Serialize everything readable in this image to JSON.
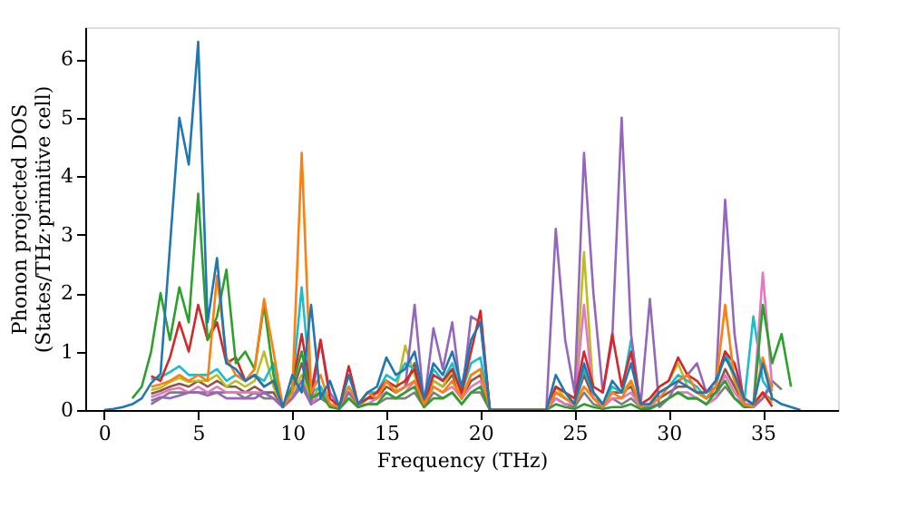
{
  "chart_data": {
    "type": "line",
    "xlabel": "Frequency (THz)",
    "ylabel": "Phonon projected DOS\n(States/THz·primitive cell)",
    "x": [
      0,
      0.5,
      1,
      1.5,
      2,
      2.5,
      3,
      3.5,
      4,
      4.5,
      5,
      5.5,
      6,
      6.5,
      7,
      7.5,
      8,
      8.5,
      9,
      9.5,
      10,
      10.5,
      11,
      11.5,
      12,
      12.5,
      13,
      13.5,
      14,
      14.5,
      15,
      15.5,
      16,
      16.5,
      17,
      17.5,
      18,
      18.5,
      19,
      19.5,
      20,
      20.5,
      21,
      21.5,
      22,
      22.5,
      23,
      23.5,
      24,
      24.5,
      25,
      25.5,
      26,
      26.5,
      27,
      27.5,
      28,
      28.5,
      29,
      29.5,
      30,
      30.5,
      31,
      31.5,
      32,
      32.5,
      33,
      33.5,
      34,
      34.5,
      35,
      35.5,
      36,
      36.5,
      37
    ],
    "xlim": [
      -1,
      39
    ],
    "xticks": [
      0,
      5,
      10,
      15,
      20,
      25,
      30,
      35
    ],
    "ylim": [
      0,
      6.55
    ],
    "yticks": [
      0,
      1,
      2,
      3,
      4,
      5,
      6
    ],
    "grid": false,
    "legend": false,
    "line_style": "solid",
    "marker": "none",
    "series": [
      {
        "color": "#8c564b",
        "values": [
          null,
          null,
          null,
          null,
          null,
          0.28,
          0.33,
          0.4,
          0.45,
          0.4,
          0.5,
          0.4,
          0.5,
          0.4,
          0.4,
          0.3,
          0.4,
          0.3,
          0.3,
          0.05,
          0.3,
          0.8,
          0.2,
          0.3,
          0.1,
          0.02,
          0.3,
          0.05,
          0.2,
          0.2,
          0.4,
          0.3,
          0.4,
          0.8,
          0.1,
          0.5,
          0.4,
          0.6,
          0.2,
          0.5,
          0.6,
          0,
          0,
          0,
          0,
          0,
          0,
          0,
          0.3,
          0.2,
          0.1,
          0.6,
          0.2,
          0.1,
          0.3,
          0.3,
          0.4,
          0.05,
          0.1,
          0.2,
          0.3,
          0.4,
          0.4,
          0.3,
          0.2,
          0.3,
          0.7,
          0.4,
          0.1,
          0.05,
          0.3,
          0.16,
          null,
          null,
          null
        ]
      },
      {
        "color": "#7f7f7f",
        "values": [
          null,
          null,
          null,
          null,
          null,
          0.1,
          0.2,
          0.3,
          0.3,
          0.3,
          0.3,
          0.3,
          0.3,
          0.3,
          0.3,
          0.2,
          0.3,
          0.2,
          0.2,
          0.05,
          0.2,
          0.4,
          0.1,
          0.2,
          0.1,
          0.02,
          0.2,
          0.05,
          0.1,
          0.1,
          0.2,
          0.2,
          0.2,
          0.3,
          0.05,
          0.3,
          0.2,
          0.3,
          0.1,
          0.3,
          0.3,
          0,
          0,
          0,
          0,
          0,
          0,
          0,
          0.2,
          0.1,
          0.05,
          0.3,
          0.1,
          0.05,
          0.2,
          0.1,
          0.2,
          0.05,
          0.05,
          0.1,
          0.2,
          0.3,
          0.2,
          0.2,
          0.1,
          0.2,
          0.4,
          0.2,
          0.1,
          0.05,
          0.2,
          0.5,
          0.35,
          null,
          null
        ]
      },
      {
        "color": "#bcbd22",
        "values": [
          null,
          null,
          null,
          null,
          null,
          0.34,
          0.38,
          0.48,
          0.55,
          0.48,
          0.5,
          0.5,
          0.6,
          0.4,
          0.5,
          0.4,
          0.5,
          1.0,
          0.4,
          0.05,
          0.3,
          0.6,
          0.2,
          0.4,
          0.1,
          0.02,
          0.3,
          0.05,
          0.2,
          0.3,
          0.5,
          0.3,
          1.1,
          0.6,
          0.1,
          0.5,
          0.4,
          0.7,
          0.2,
          0.6,
          0.7,
          0,
          0,
          0,
          0,
          0,
          0,
          0,
          0.4,
          0.2,
          0.1,
          2.7,
          0.3,
          0.1,
          0.4,
          0.3,
          0.5,
          0.05,
          0.1,
          0.4,
          0.5,
          0.8,
          0.4,
          0.3,
          0.2,
          0.4,
          1.0,
          0.5,
          0.1,
          0.05,
          0.3,
          0.12,
          null,
          null,
          null
        ]
      },
      {
        "color": "#17becf",
        "values": [
          null,
          null,
          null,
          null,
          null,
          0.52,
          0.56,
          0.65,
          0.75,
          0.6,
          0.6,
          0.6,
          0.7,
          0.5,
          0.6,
          0.5,
          0.6,
          0.5,
          0.8,
          0.05,
          0.4,
          2.1,
          0.3,
          0.4,
          0.1,
          0.02,
          0.4,
          0.1,
          0.3,
          0.3,
          0.6,
          0.5,
          0.8,
          0.7,
          0.1,
          0.7,
          0.5,
          0.8,
          0.3,
          0.8,
          0.9,
          0,
          0,
          0,
          0,
          0,
          0,
          0,
          0.4,
          0.3,
          0.1,
          0.7,
          0.3,
          0.1,
          0.4,
          0.3,
          1.2,
          0.05,
          0.1,
          0.3,
          0.4,
          0.6,
          0.5,
          0.4,
          0.2,
          0.4,
          1.0,
          0.6,
          0.1,
          1.6,
          0.5,
          0.26,
          null,
          null,
          null
        ]
      },
      {
        "color": "#e377c2",
        "values": [
          null,
          null,
          null,
          null,
          null,
          0.22,
          0.28,
          0.35,
          0.38,
          0.3,
          0.4,
          0.3,
          0.4,
          0.3,
          0.3,
          0.3,
          0.3,
          0.3,
          0.2,
          0.05,
          0.2,
          0.5,
          0.1,
          0.3,
          0.1,
          0.02,
          0.2,
          0.05,
          0.1,
          0.2,
          0.3,
          0.2,
          0.3,
          0.5,
          0.1,
          0.4,
          0.3,
          0.4,
          0.2,
          0.4,
          0.5,
          0,
          0,
          0,
          0,
          0,
          0,
          0,
          0.2,
          0.1,
          0.1,
          1.8,
          0.2,
          0.05,
          0.2,
          0.2,
          0.3,
          0.05,
          0.1,
          0.1,
          0.2,
          0.3,
          0.3,
          0.2,
          0.1,
          0.2,
          0.6,
          0.3,
          0.1,
          0.1,
          2.35,
          0.38,
          null,
          null,
          null
        ]
      },
      {
        "color": "#9467bd",
        "values": [
          null,
          null,
          null,
          null,
          null,
          0.16,
          0.22,
          0.2,
          0.25,
          0.3,
          0.3,
          0.25,
          0.3,
          0.2,
          0.2,
          0.2,
          0.2,
          0.3,
          0.2,
          0.05,
          0.2,
          0.5,
          0.1,
          1.2,
          0.3,
          0.05,
          0.3,
          0.1,
          0.2,
          0.3,
          0.5,
          0.3,
          0.4,
          1.8,
          0.1,
          1.4,
          0.7,
          1.5,
          0.2,
          1.6,
          1.5,
          0,
          0,
          0,
          0,
          0,
          0,
          0,
          3.1,
          1.2,
          0.3,
          4.4,
          2.0,
          0.3,
          1.2,
          5.0,
          1.3,
          0.05,
          1.9,
          0.05,
          0.2,
          0.5,
          0.6,
          0.8,
          0.3,
          0.4,
          3.6,
          1.3,
          0.1,
          0.05,
          0.2,
          0.44,
          null,
          null,
          null
        ]
      },
      {
        "color": "#d62728",
        "values": [
          null,
          null,
          null,
          null,
          null,
          0.58,
          0.5,
          0.9,
          1.5,
          1.0,
          1.8,
          1.2,
          1.5,
          0.8,
          0.9,
          0.5,
          0.6,
          0.4,
          0.5,
          0.05,
          0.4,
          1.3,
          0.3,
          1.2,
          0.2,
          0.05,
          0.75,
          0.1,
          0.2,
          0.3,
          0.5,
          0.4,
          0.5,
          0.7,
          0.1,
          0.6,
          0.5,
          0.7,
          0.3,
          1.0,
          1.7,
          0,
          0,
          0,
          0,
          0,
          0,
          0,
          0.4,
          0.3,
          0.2,
          1.0,
          0.4,
          0.3,
          1.3,
          0.4,
          1.0,
          0.1,
          0.2,
          0.4,
          0.5,
          0.9,
          0.6,
          0.5,
          0.3,
          0.5,
          1.0,
          0.8,
          0.2,
          0.1,
          0.3,
          0.06,
          null,
          null,
          null
        ]
      },
      {
        "color": "#2ca02c",
        "values": [
          null,
          null,
          null,
          0.2,
          0.4,
          1.0,
          2.0,
          1.2,
          2.1,
          1.5,
          3.7,
          1.2,
          1.6,
          2.4,
          0.8,
          1.0,
          0.7,
          1.8,
          0.6,
          0.05,
          0.4,
          1.0,
          0.2,
          0.3,
          0.05,
          0.02,
          0.2,
          0.05,
          0.1,
          0.1,
          0.3,
          0.2,
          0.3,
          0.4,
          0.05,
          0.2,
          0.2,
          0.3,
          0.1,
          0.3,
          0.4,
          0,
          0,
          0,
          0,
          0,
          0,
          0,
          0.1,
          0.05,
          0.02,
          0.1,
          0.05,
          0.02,
          0.05,
          0.05,
          0.1,
          0.02,
          0.02,
          0.1,
          0.2,
          0.3,
          0.2,
          0.2,
          0.1,
          0.3,
          0.5,
          0.2,
          0.05,
          0.05,
          1.8,
          0.8,
          1.3,
          0.4,
          null
        ]
      },
      {
        "color": "#ff7f0e",
        "values": [
          null,
          null,
          null,
          null,
          null,
          0.4,
          0.44,
          0.5,
          0.6,
          0.5,
          0.6,
          0.5,
          2.3,
          0.9,
          0.6,
          0.5,
          0.7,
          1.9,
          1.0,
          0.05,
          0.3,
          4.4,
          0.3,
          0.6,
          0.1,
          0.05,
          0.4,
          0.1,
          0.3,
          0.2,
          0.5,
          0.3,
          0.4,
          0.5,
          0.1,
          0.4,
          0.3,
          0.5,
          0.2,
          0.6,
          0.7,
          0,
          0,
          0,
          0,
          0,
          0,
          0,
          0.3,
          0.2,
          0.1,
          0.4,
          0.2,
          0.05,
          0.3,
          0.2,
          0.5,
          0.05,
          0.1,
          0.2,
          0.4,
          0.5,
          0.6,
          0.3,
          0.2,
          0.4,
          1.8,
          0.5,
          0.1,
          0.05,
          0.9,
          0.32,
          null,
          null,
          null
        ]
      },
      {
        "color": "#1f77b4",
        "values": [
          0,
          0.02,
          0.05,
          0.1,
          0.2,
          0.46,
          0.62,
          2.8,
          5.0,
          4.2,
          6.3,
          1.5,
          2.6,
          0.8,
          0.7,
          0.5,
          0.6,
          0.4,
          0.5,
          0.05,
          0.6,
          0.3,
          1.8,
          0.2,
          0.5,
          0.05,
          0.6,
          0.1,
          0.3,
          0.4,
          0.9,
          0.6,
          0.7,
          1.0,
          0.2,
          0.8,
          0.6,
          1.0,
          0.4,
          1.2,
          1.5,
          0,
          0,
          0,
          0,
          0,
          0,
          0,
          0.6,
          0.3,
          0.1,
          0.8,
          0.3,
          0.1,
          0.5,
          0.3,
          0.8,
          0.1,
          0.1,
          0.3,
          0.4,
          0.5,
          0.4,
          0.3,
          0.3,
          0.5,
          0.9,
          0.6,
          0.2,
          0.1,
          0.8,
          0.2,
          0.1,
          0.05,
          0
        ]
      }
    ]
  }
}
